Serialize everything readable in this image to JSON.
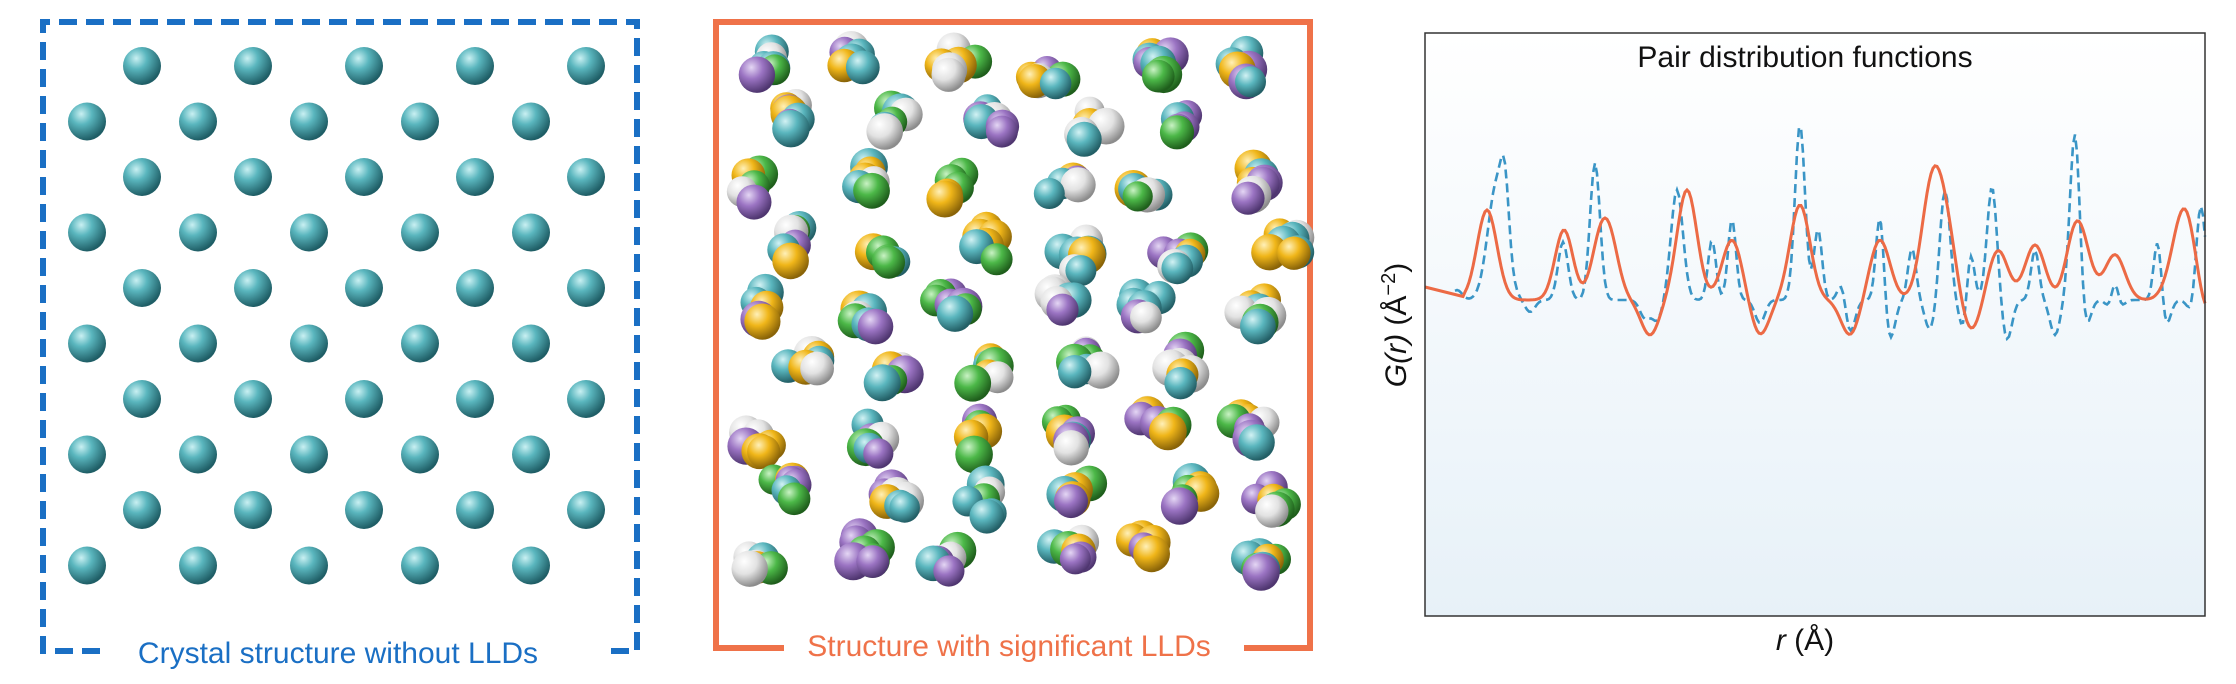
{
  "panels": {
    "crystal": {
      "caption": "Crystal structure without LLDs",
      "color": "#1a6fc4",
      "atom_color": "#5ab6be"
    },
    "disordered": {
      "caption": "Structure with significant LLDs",
      "color": "#ef7249",
      "atom_colors": [
        "#5ab6be",
        "#9b74c3",
        "#4cb848",
        "#f0b619",
        "#dcdcdc"
      ]
    },
    "pdf": {
      "title": "Pair distribution functions",
      "xlabel_var": "r",
      "xlabel_unit": " (Å)",
      "ylabel_var": "G(r)",
      "ylabel_unit": " (Å",
      "ylabel_exp": "−2",
      "ylabel_close": ")"
    }
  },
  "chart_data": {
    "type": "line",
    "title": "Pair distribution functions",
    "xlabel": "r (Å)",
    "ylabel": "G(r) (Å⁻²)",
    "grid": false,
    "series": [
      {
        "style": "dashed",
        "color": "#3a95c6"
      },
      {
        "style": "solid",
        "color": "#ec6a45"
      }
    ]
  }
}
